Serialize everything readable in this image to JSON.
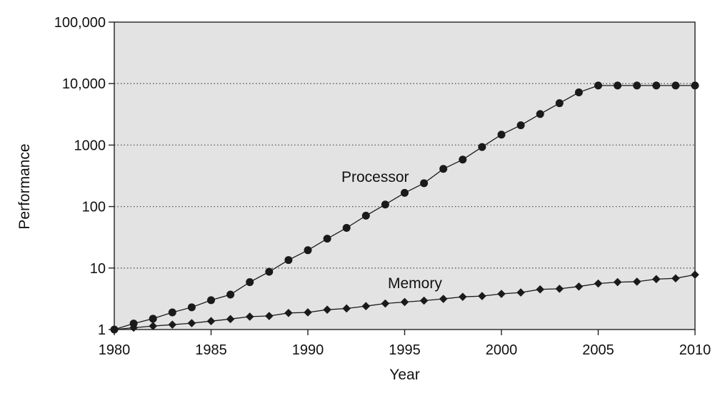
{
  "chart_data": {
    "type": "line",
    "title": "",
    "xlabel": "Year",
    "ylabel": "Performance",
    "yscale": "log",
    "xlim": [
      1980,
      2010
    ],
    "ylim": [
      1,
      100000
    ],
    "x_ticks": [
      1980,
      1985,
      1990,
      1995,
      2000,
      2005,
      2010
    ],
    "x_tick_labels": [
      "1980",
      "1985",
      "1990",
      "1995",
      "2000",
      "2005",
      "2010"
    ],
    "y_ticks": [
      1,
      10,
      100,
      1000,
      10000,
      100000
    ],
    "y_tick_labels": [
      "1",
      "10",
      "100",
      "1000",
      "10,000",
      "100,000"
    ],
    "grid": "horizontal dotted",
    "background_color": "#e3e3e3",
    "line_color": "#1a1a1a",
    "x": [
      1980,
      1981,
      1982,
      1983,
      1984,
      1985,
      1986,
      1987,
      1988,
      1989,
      1990,
      1991,
      1992,
      1993,
      1994,
      1995,
      1996,
      1997,
      1998,
      1999,
      2000,
      2001,
      2002,
      2003,
      2004,
      2005,
      2006,
      2007,
      2008,
      2009,
      2010
    ],
    "series": [
      {
        "name": "Processor",
        "marker": "circle",
        "values": [
          1,
          1.25,
          1.5,
          1.9,
          2.3,
          3.0,
          3.7,
          5.9,
          8.7,
          13.5,
          19.5,
          30,
          45,
          71,
          108,
          167,
          240,
          410,
          580,
          930,
          1480,
          2100,
          3200,
          4800,
          7200,
          9300,
          9300,
          9300,
          9300,
          9300,
          9300
        ]
      },
      {
        "name": "Memory",
        "marker": "diamond",
        "values": [
          1,
          1.07,
          1.14,
          1.2,
          1.27,
          1.37,
          1.48,
          1.62,
          1.66,
          1.86,
          1.9,
          2.1,
          2.2,
          2.4,
          2.65,
          2.8,
          2.95,
          3.15,
          3.4,
          3.5,
          3.8,
          4.0,
          4.5,
          4.6,
          5.0,
          5.6,
          5.9,
          6.0,
          6.6,
          6.8,
          7.8
        ]
      }
    ]
  }
}
